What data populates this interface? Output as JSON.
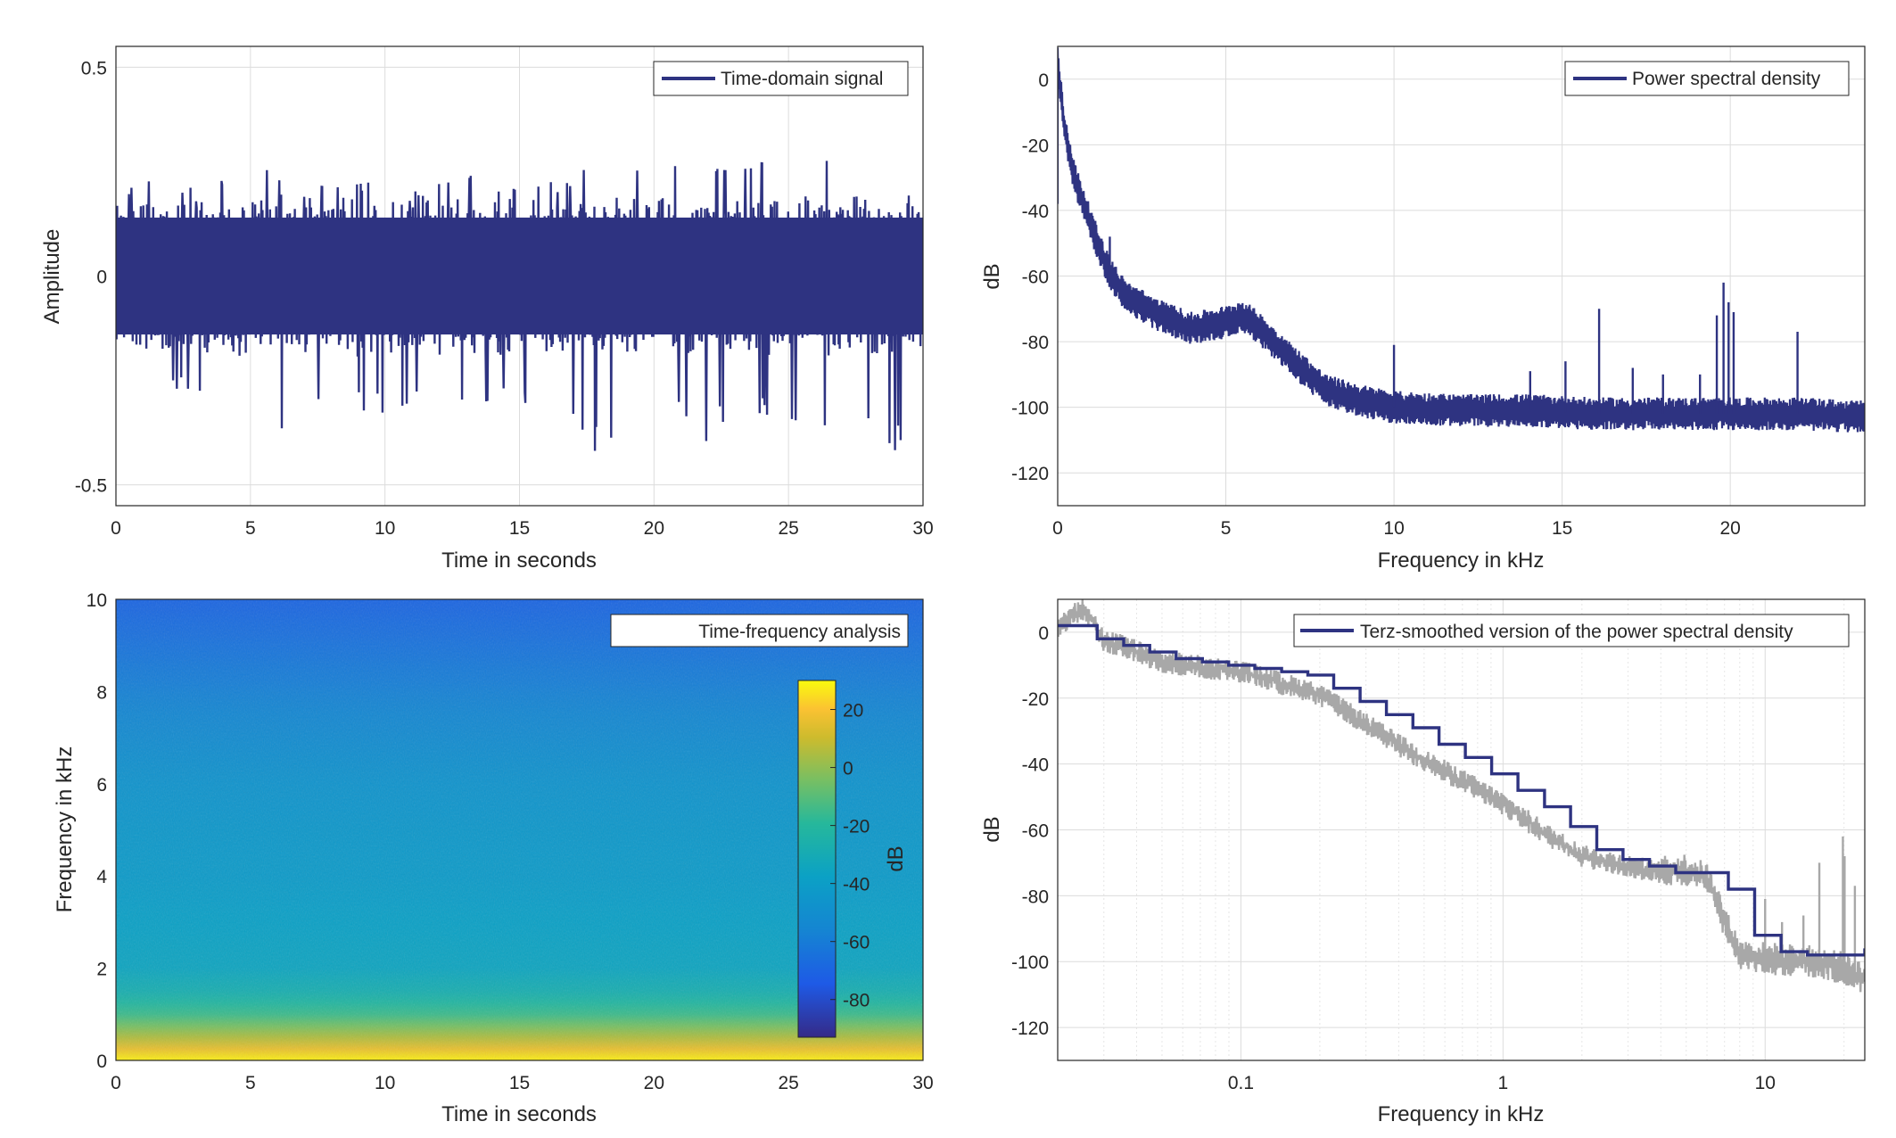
{
  "colors": {
    "series_main": "#2e3381",
    "series_raw_gray": "#a8a8a8",
    "grid": "#dcdcdc",
    "axis": "#262626"
  },
  "chart_data": [
    {
      "id": "time",
      "type": "line",
      "legend": "Time-domain signal",
      "legend_position": "top-right",
      "xlabel": "Time in seconds",
      "ylabel": "Amplitude",
      "xlim": [
        0,
        30
      ],
      "ylim": [
        -0.55,
        0.55
      ],
      "xticks": [
        0,
        5,
        10,
        15,
        20,
        25,
        30
      ],
      "yticks": [
        -0.5,
        0,
        0.5
      ],
      "ytick_labels": [
        "-0.5",
        "0",
        "0.5"
      ],
      "grid": true,
      "envelope": {
        "x": [
          0,
          1,
          2,
          3,
          4,
          5,
          6,
          7,
          8,
          9,
          10,
          11,
          12,
          13,
          14,
          15,
          16,
          17,
          18,
          19,
          20,
          21,
          22,
          23,
          24,
          25,
          26,
          27,
          28,
          29,
          30
        ],
        "max": [
          0.2,
          0.22,
          0.25,
          0.2,
          0.23,
          0.35,
          0.23,
          0.22,
          0.21,
          0.22,
          0.23,
          0.2,
          0.22,
          0.24,
          0.24,
          0.2,
          0.22,
          0.25,
          0.26,
          0.26,
          0.24,
          0.27,
          0.26,
          0.25,
          0.27,
          0.26,
          0.28,
          0.27,
          0.29,
          0.27,
          0.2
        ],
        "min": [
          -0.2,
          -0.34,
          -0.27,
          -0.27,
          -0.31,
          -0.33,
          -0.44,
          -0.3,
          -0.29,
          -0.32,
          -0.33,
          -0.3,
          -0.27,
          -0.3,
          -0.3,
          -0.31,
          -0.3,
          -0.33,
          -0.44,
          -0.31,
          -0.32,
          -0.32,
          -0.4,
          -0.31,
          -0.33,
          -0.34,
          -0.36,
          -0.36,
          -0.34,
          -0.42,
          -0.26
        ]
      }
    },
    {
      "id": "psd",
      "type": "line",
      "legend": "Power spectral density",
      "legend_position": "top-right",
      "xlabel": "Frequency in kHz",
      "ylabel": "dB",
      "xlim": [
        0,
        24
      ],
      "ylim": [
        -130,
        10
      ],
      "xticks": [
        0,
        5,
        10,
        15,
        20
      ],
      "yticks": [
        0,
        -20,
        -40,
        -60,
        -80,
        -100,
        -120
      ],
      "grid": true,
      "x": [
        0,
        0.05,
        0.2,
        0.5,
        1,
        1.5,
        2,
        3,
        4,
        5,
        5.5,
        6,
        7,
        8,
        9,
        10,
        12,
        14,
        16,
        18,
        20,
        22,
        24
      ],
      "y": [
        5,
        0,
        -15,
        -30,
        -45,
        -58,
        -66,
        -72,
        -76,
        -74,
        -72,
        -76,
        -86,
        -95,
        -98,
        -100,
        -101,
        -101,
        -102,
        -102,
        -102,
        -102,
        -103
      ],
      "spikes": [
        {
          "x": 1.55,
          "y": -48
        },
        {
          "x": 10.0,
          "y": -81
        },
        {
          "x": 14.05,
          "y": -89
        },
        {
          "x": 15.1,
          "y": -86
        },
        {
          "x": 16.1,
          "y": -70
        },
        {
          "x": 17.1,
          "y": -88
        },
        {
          "x": 18.0,
          "y": -90
        },
        {
          "x": 19.1,
          "y": -90
        },
        {
          "x": 19.6,
          "y": -72
        },
        {
          "x": 19.8,
          "y": -62
        },
        {
          "x": 19.95,
          "y": -68
        },
        {
          "x": 20.1,
          "y": -71
        },
        {
          "x": 22.0,
          "y": -77
        }
      ]
    },
    {
      "id": "spectrogram",
      "type": "heatmap",
      "legend": "Time-frequency analysis",
      "legend_position": "top-right",
      "xlabel": "Time in seconds",
      "ylabel": "Frequency in kHz",
      "xlim": [
        0,
        30
      ],
      "ylim": [
        0,
        10
      ],
      "xticks": [
        0,
        5,
        10,
        15,
        20,
        25,
        30
      ],
      "yticks": [
        0,
        2,
        4,
        6,
        8,
        10
      ],
      "colorbar": {
        "label": "dB",
        "clim": [
          -93,
          30
        ],
        "ticks": [
          20,
          0,
          -20,
          -40,
          -60,
          -80
        ]
      },
      "level_profile": {
        "freq_khz": [
          0,
          0.2,
          0.5,
          1,
          1.5,
          2,
          3,
          4,
          5,
          6,
          7,
          8,
          9,
          10
        ],
        "db": [
          28,
          18,
          5,
          -15,
          -28,
          -35,
          -38,
          -42,
          -44,
          -47,
          -52,
          -58,
          -64,
          -70
        ]
      }
    },
    {
      "id": "terz",
      "type": "line",
      "legend": "Terz-smoothed version of the power spectral density",
      "legend_position": "top-right",
      "xlabel": "Frequency in kHz",
      "ylabel": "dB",
      "xscale": "log",
      "xlim": [
        0.02,
        24
      ],
      "ylim": [
        -130,
        10
      ],
      "xticks": [
        0.1,
        1,
        10
      ],
      "xtick_labels": [
        "0.1",
        "1",
        "10"
      ],
      "yticks": [
        0,
        -20,
        -40,
        -60,
        -80,
        -100,
        -120
      ],
      "grid": true,
      "series": [
        {
          "name": "raw",
          "x": [
            0.02,
            0.025,
            0.028,
            0.03,
            0.035,
            0.05,
            0.1,
            0.15,
            0.2,
            0.3,
            0.5,
            0.7,
            1,
            1.5,
            2,
            3,
            4,
            5,
            6,
            6.5,
            7,
            8,
            10,
            15,
            20,
            24
          ],
          "y": [
            2,
            7,
            2,
            -3,
            -4,
            -9,
            -12,
            -16,
            -19,
            -28,
            -39,
            -45,
            -52,
            -62,
            -68,
            -71,
            -73,
            -72,
            -75,
            -80,
            -88,
            -98,
            -99,
            -100,
            -102,
            -105
          ]
        },
        {
          "name": "smoothed",
          "x": [
            0.02,
            0.0283,
            0.0357,
            0.0449,
            0.0566,
            0.0713,
            0.0898,
            0.113,
            0.143,
            0.18,
            0.226,
            0.285,
            0.359,
            0.453,
            0.57,
            0.718,
            0.905,
            1.14,
            1.44,
            1.81,
            2.28,
            2.87,
            3.62,
            4.56,
            5.75,
            7.24,
            9.12,
            11.5,
            14.5,
            18.2,
            24
          ],
          "y": [
            2,
            -2,
            -4,
            -6,
            -8,
            -9,
            -10,
            -11,
            -12,
            -13,
            -17,
            -21,
            -25,
            -29,
            -34,
            -38,
            -43,
            -48,
            -53,
            -59,
            -66,
            -69,
            -71,
            -73,
            -73,
            -78,
            -92,
            -97,
            -98,
            -98,
            -96
          ]
        }
      ],
      "spikes": [
        {
          "x": 10.0,
          "y": -81
        },
        {
          "x": 11.6,
          "y": -88
        },
        {
          "x": 14.0,
          "y": -86
        },
        {
          "x": 16.1,
          "y": -70
        },
        {
          "x": 19.8,
          "y": -62
        },
        {
          "x": 20.1,
          "y": -68
        },
        {
          "x": 22.0,
          "y": -77
        }
      ]
    }
  ]
}
